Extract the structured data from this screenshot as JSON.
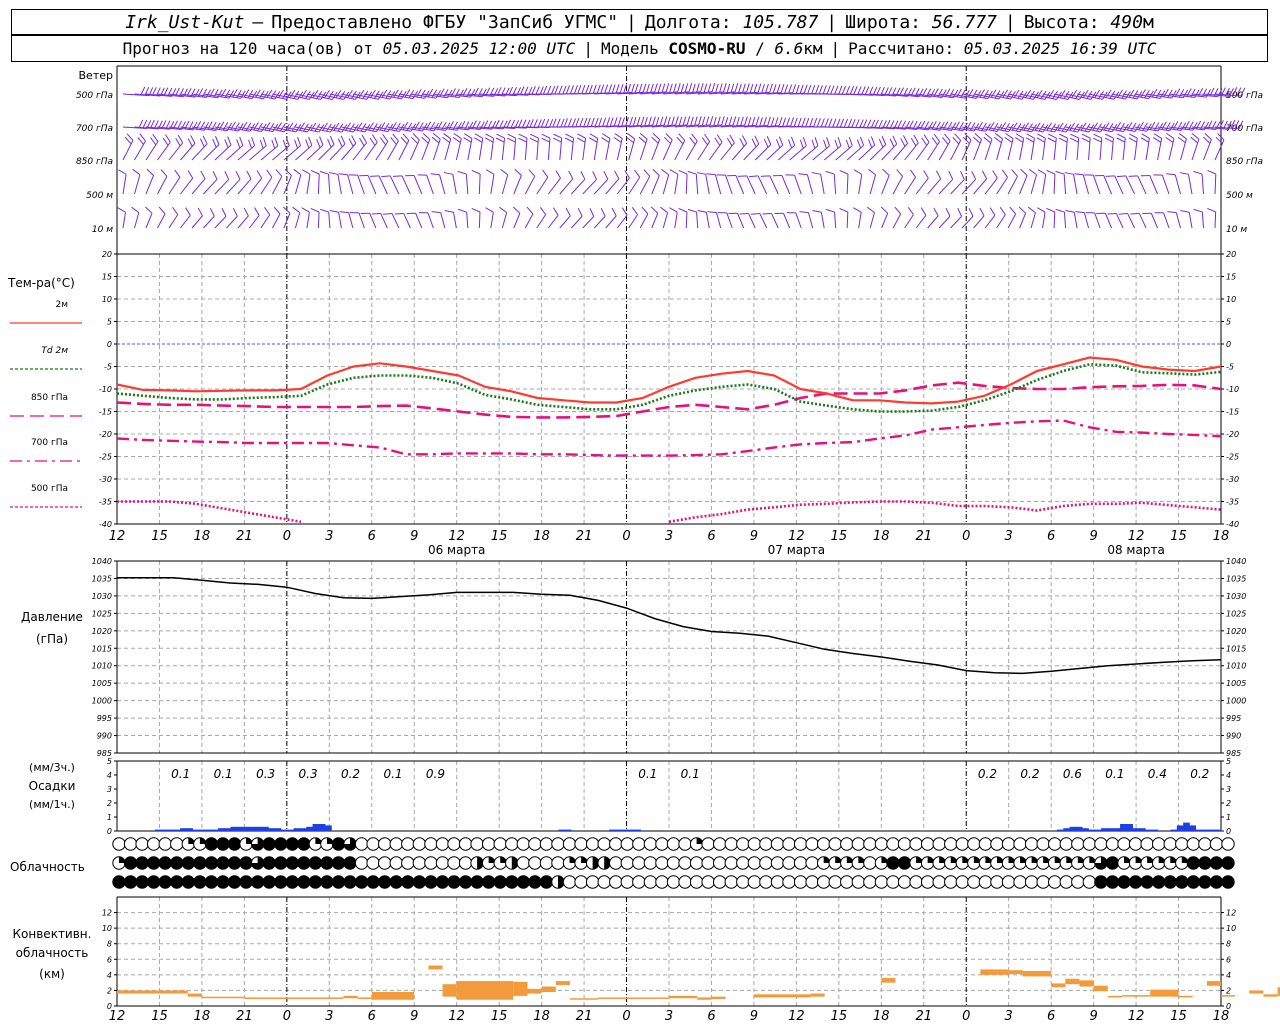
{
  "header": {
    "station": "Irk_Ust-Kut",
    "dash": "–",
    "provider": "Предоставлено ФГБУ \"ЗапСиб УГМС\"",
    "lon_label": "Долгота:",
    "lon": "105.787",
    "lat_label": "Широта:",
    "lat": "56.777",
    "alt_label": "Высота:",
    "alt": "490",
    "alt_unit": "м",
    "forecast_label": "Прогноз на 120 часа(ов) от",
    "forecast_from": "05.03.2025 12:00 UTC",
    "model_label": "Модель",
    "model": "COSMO-RU",
    "model_res": "6.6",
    "model_res_unit": "км",
    "computed_label": "Рассчитано:",
    "computed": "05.03.2025 16:39 UTC"
  },
  "chart_data": {
    "time_ticks": [
      "12",
      "15",
      "18",
      "21",
      "0",
      "3",
      "6",
      "9",
      "12",
      "15",
      "18",
      "21",
      "0",
      "3",
      "6",
      "9",
      "12",
      "15",
      "18",
      "21",
      "0",
      "3",
      "6",
      "9",
      "12",
      "15",
      "18"
    ],
    "day_labels": [
      "06 марта",
      "07 марта",
      "08 марта"
    ],
    "wind": {
      "title": "Ветер",
      "levels": [
        "500 гПа",
        "700 гПа",
        "850 гПа",
        "500 м",
        "10 м"
      ],
      "color": "#7a2ad8"
    },
    "temperature": {
      "type": "line",
      "title": "Тем-ра(°C)",
      "ylim": [
        -40,
        20
      ],
      "yticks": [
        "20",
        "15",
        "10",
        "5",
        "0",
        "-5",
        "-10",
        "-15",
        "-20",
        "-25",
        "-30",
        "-35",
        "-40"
      ],
      "series": [
        {
          "name": "2м",
          "color": "#ff3b30",
          "style": "solid",
          "values": [
            -9,
            -10.2,
            -10.3,
            -10.5,
            -10.4,
            -10.3,
            -10.3,
            -10,
            -7,
            -5,
            -4.3,
            -5,
            -6,
            -7,
            -9.5,
            -10.5,
            -12,
            -12.5,
            -13,
            -13,
            -12,
            -9.5,
            -7.5,
            -6.6,
            -6,
            -7,
            -10,
            -11,
            -12.5,
            -12.5,
            -13,
            -13.2,
            -12.8,
            -11.5,
            -9,
            -6,
            -4.5,
            -3,
            -3.5,
            -5,
            -5.7,
            -6,
            -5
          ]
        },
        {
          "name": "Td 2м",
          "color": "#1a7a1a",
          "style": "dotted",
          "values": [
            -11,
            -11.5,
            -12,
            -12.3,
            -12.3,
            -12,
            -11.8,
            -11.5,
            -9,
            -7.5,
            -7,
            -7,
            -7.5,
            -8.8,
            -11.3,
            -12.3,
            -13.5,
            -14,
            -14.5,
            -14.5,
            -13.5,
            -11.5,
            -10.3,
            -9.5,
            -9,
            -10,
            -12.8,
            -13.7,
            -14.5,
            -15,
            -15,
            -14.8,
            -14,
            -12.5,
            -10.5,
            -8,
            -6,
            -4.5,
            -4.8,
            -6.3,
            -6.5,
            -6.8,
            -6.2
          ]
        },
        {
          "name": "850 гПа",
          "color": "#e5127a",
          "style": "dashed",
          "values": [
            -13,
            -13.3,
            -13.5,
            -13.5,
            -13.7,
            -13.8,
            -14,
            -14,
            -14,
            -14,
            -13.8,
            -13.7,
            -14.3,
            -15,
            -15.7,
            -16.2,
            -16.3,
            -16.3,
            -16.2,
            -16,
            -15,
            -14,
            -13.5,
            -14,
            -14.5,
            -13.5,
            -12,
            -11,
            -11,
            -11,
            -10.3,
            -9.2,
            -8.6,
            -9.3,
            -9.8,
            -10,
            -10,
            -9.6,
            -9.4,
            -9.3,
            -9.1,
            -9.2,
            -10
          ]
        },
        {
          "name": "700 гПа",
          "color": "#e5127a",
          "style": "dashdot",
          "values": [
            -21,
            -21.3,
            -21.5,
            -21.7,
            -21.8,
            -22,
            -22,
            -22,
            -22,
            -22.5,
            -23,
            -24.5,
            -24.5,
            -24.3,
            -24.3,
            -24.3,
            -24.5,
            -24.5,
            -24.7,
            -24.8,
            -24.8,
            -24.8,
            -24.7,
            -24.5,
            -23.8,
            -23,
            -22.3,
            -22,
            -21.8,
            -21,
            -20.3,
            -19,
            -18.5,
            -18,
            -17.5,
            -17.2,
            -17,
            -18.5,
            -19.5,
            -19.7,
            -20,
            -20.2,
            -20.5
          ]
        },
        {
          "name": "500 гПа",
          "color": "#e5127a",
          "style": "dotted",
          "values": [
            -35,
            -35,
            -35,
            -35.5,
            -36.5,
            -37.5,
            -38.5,
            -39.5,
            -40.5,
            null,
            null,
            null,
            null,
            null,
            null,
            null,
            null,
            null,
            null,
            null,
            -41,
            -39.5,
            -38.5,
            -37.8,
            -36.8,
            -36.3,
            -35.7,
            -35.5,
            -35.2,
            -35,
            -35,
            -35.3,
            -36,
            -36,
            -36.3,
            -37,
            -36,
            -35.5,
            -35.5,
            -35.3,
            -35.8,
            -36.3,
            -36.8
          ]
        }
      ]
    },
    "pressure": {
      "type": "line",
      "title": "Давление",
      "unit": "(гПа)",
      "ylim": [
        985,
        1040
      ],
      "yticks": [
        "1040",
        "1035",
        "1030",
        "1025",
        "1020",
        "1015",
        "1010",
        "1005",
        "1000",
        "995",
        "990",
        "985"
      ],
      "color": "#000000",
      "values": [
        1035.2,
        1035.2,
        1035.2,
        1034.5,
        1033.7,
        1033.3,
        1032.5,
        1030.7,
        1029.5,
        1029.3,
        1029.8,
        1030.3,
        1031,
        1031,
        1031,
        1030.5,
        1030.2,
        1028.7,
        1026.5,
        1023.5,
        1021.2,
        1019.8,
        1019.3,
        1018.5,
        1016.6,
        1014.7,
        1013.5,
        1012.5,
        1011.3,
        1010.2,
        1008.6,
        1008,
        1007.8,
        1008.4,
        1009.2,
        1010,
        1010.5,
        1011,
        1011.4,
        1011.7
      ]
    },
    "precipitation": {
      "type": "bar",
      "title": "Осадки",
      "unit_3h": "(мм/3ч.)",
      "unit_1h": "(мм/1ч.)",
      "ylim": [
        0,
        5
      ],
      "yticks": [
        "5",
        "4",
        "3",
        "2",
        "1",
        "0"
      ],
      "labels_3h": [
        {
          "t": 1,
          "text": "0.1"
        },
        {
          "t": 2,
          "text": "0.1"
        },
        {
          "t": 3,
          "text": "0.3"
        },
        {
          "t": 4,
          "text": "0.3"
        },
        {
          "t": 5,
          "text": "0.2"
        },
        {
          "t": 6,
          "text": "0.1"
        },
        {
          "t": 7,
          "text": "0.9"
        },
        {
          "t": 12,
          "text": "0.1"
        },
        {
          "t": 13,
          "text": "0.1"
        },
        {
          "t": 20,
          "text": "0.2"
        },
        {
          "t": 21,
          "text": "0.2"
        },
        {
          "t": 22,
          "text": "0.6"
        },
        {
          "t": 23,
          "text": "0.1"
        },
        {
          "t": 24,
          "text": "0.4"
        },
        {
          "t": 25,
          "text": "0.2"
        }
      ],
      "hourly": [
        0,
        0,
        0,
        0,
        0,
        0,
        0.1,
        0.1,
        0.1,
        0.1,
        0.2,
        0.2,
        0.1,
        0.1,
        0.1,
        0.1,
        0.2,
        0.2,
        0.3,
        0.3,
        0.3,
        0.3,
        0.3,
        0.3,
        0.2,
        0.2,
        0.1,
        0.1,
        0.2,
        0.2,
        0.3,
        0.5,
        0.5,
        0.4,
        0,
        0,
        0,
        0,
        0,
        0,
        0,
        0,
        0,
        0,
        0,
        0,
        0,
        0,
        0,
        0,
        0,
        0,
        0,
        0,
        0,
        0,
        0,
        0,
        0,
        0,
        0,
        0,
        0,
        0,
        0,
        0,
        0,
        0,
        0,
        0,
        0.1,
        0.1,
        0,
        0,
        0,
        0,
        0,
        0,
        0.1,
        0.1,
        0.1,
        0.1,
        0.1,
        0,
        0,
        0,
        0,
        0,
        0,
        0,
        0,
        0,
        0,
        0,
        0,
        0,
        0,
        0,
        0,
        0,
        0,
        0,
        0,
        0,
        0,
        0,
        0,
        0,
        0,
        0,
        0,
        0,
        0,
        0,
        0,
        0,
        0,
        0,
        0,
        0,
        0,
        0,
        0,
        0,
        0,
        0,
        0,
        0,
        0,
        0,
        0,
        0,
        0,
        0,
        0,
        0,
        0,
        0,
        0,
        0,
        0,
        0,
        0,
        0,
        0,
        0,
        0,
        0,
        0,
        0.1,
        0.2,
        0.3,
        0.3,
        0.2,
        0.1,
        0.1,
        0.2,
        0.2,
        0.2,
        0.5,
        0.5,
        0.2,
        0.2,
        0.1,
        0.1,
        0,
        0,
        0.1,
        0.4,
        0.6,
        0.4,
        0.1,
        0.1,
        0.1,
        0.1
      ],
      "color": "#1f3fe0"
    },
    "cloudiness": {
      "title": "Облачность",
      "rows": [
        "0000001144413444411430000000000000000000000000000010000000000000000000000000000000000000000000000",
        "1444444444443444444440000000000211200001122000000000000000000111101441111111111111111341111114444",
        "4444444444444444444444444444444444444420000000000000000000000000000000000000000000000444444444444"
      ]
    },
    "convective": {
      "type": "bar",
      "title": "Конвективн. облачность",
      "unit": "(км)",
      "ylim": [
        0,
        14
      ],
      "yticks": [
        "12",
        "10",
        "8",
        "6",
        "4",
        "2",
        "0"
      ],
      "color": "#f39a3a",
      "segments": [
        {
          "a": 0,
          "b": 5,
          "bot": 1.6,
          "top": 2
        },
        {
          "a": 5,
          "b": 6,
          "bot": 1.2,
          "top": 1.6
        },
        {
          "a": 6,
          "b": 9,
          "bot": 1,
          "top": 1.2
        },
        {
          "a": 9,
          "b": 16,
          "bot": 0.9,
          "top": 1.1
        },
        {
          "a": 16,
          "b": 17,
          "bot": 1,
          "top": 1.3
        },
        {
          "a": 17,
          "b": 18,
          "bot": 0.9,
          "top": 1.1
        },
        {
          "a": 18,
          "b": 21,
          "bot": 0.8,
          "top": 1.8
        },
        {
          "a": 22,
          "b": 23,
          "bot": 4.7,
          "top": 5.2
        },
        {
          "a": 23,
          "b": 24,
          "bot": 1.2,
          "top": 2.8
        },
        {
          "a": 24,
          "b": 28,
          "bot": 0.8,
          "top": 3.2
        },
        {
          "a": 28,
          "b": 29,
          "bot": 1.3,
          "top": 3.1
        },
        {
          "a": 29,
          "b": 30,
          "bot": 1.6,
          "top": 2.2
        },
        {
          "a": 30,
          "b": 31,
          "bot": 1.8,
          "top": 2.5
        },
        {
          "a": 31,
          "b": 32,
          "bot": 2.7,
          "top": 3.2
        },
        {
          "a": 32,
          "b": 34,
          "bot": 0.9,
          "top": 1
        },
        {
          "a": 34,
          "b": 39,
          "bot": 1,
          "top": 1.1
        },
        {
          "a": 39,
          "b": 41,
          "bot": 1,
          "top": 1.3
        },
        {
          "a": 41,
          "b": 42,
          "bot": 0.8,
          "top": 1.1
        },
        {
          "a": 42,
          "b": 43,
          "bot": 0.9,
          "top": 1.2
        },
        {
          "a": 45,
          "b": 49,
          "bot": 1.1,
          "top": 1.5
        },
        {
          "a": 49,
          "b": 50,
          "bot": 1.2,
          "top": 1.6
        },
        {
          "a": 54,
          "b": 55,
          "bot": 3,
          "top": 3.6
        },
        {
          "a": 61,
          "b": 63,
          "bot": 4,
          "top": 4.7
        },
        {
          "a": 63,
          "b": 64,
          "bot": 4.1,
          "top": 4.6
        },
        {
          "a": 64,
          "b": 66,
          "bot": 3.8,
          "top": 4.5
        },
        {
          "a": 66,
          "b": 67,
          "bot": 2.4,
          "top": 2.9
        },
        {
          "a": 67,
          "b": 68,
          "bot": 2.8,
          "top": 3.5
        },
        {
          "a": 68,
          "b": 69,
          "bot": 2.5,
          "top": 3.3
        },
        {
          "a": 69,
          "b": 70,
          "bot": 1.9,
          "top": 2.6
        },
        {
          "a": 70,
          "b": 71,
          "bot": 1.1,
          "top": 1.3
        },
        {
          "a": 71,
          "b": 73,
          "bot": 1.2,
          "top": 1.4
        },
        {
          "a": 73,
          "b": 75,
          "bot": 1.2,
          "top": 2.1
        },
        {
          "a": 75,
          "b": 76,
          "bot": 1.2,
          "top": 1.3
        },
        {
          "a": 77,
          "b": 78,
          "bot": 2.6,
          "top": 3.2
        },
        {
          "a": 78,
          "b": 79,
          "bot": 1.2,
          "top": 1.4
        },
        {
          "a": 80,
          "b": 81,
          "bot": 1.6,
          "top": 2
        },
        {
          "a": 81,
          "b": 82,
          "bot": 1.2,
          "top": 1.5
        },
        {
          "a": 82,
          "b": 83,
          "bot": 1.3,
          "top": 2.4
        }
      ]
    }
  }
}
